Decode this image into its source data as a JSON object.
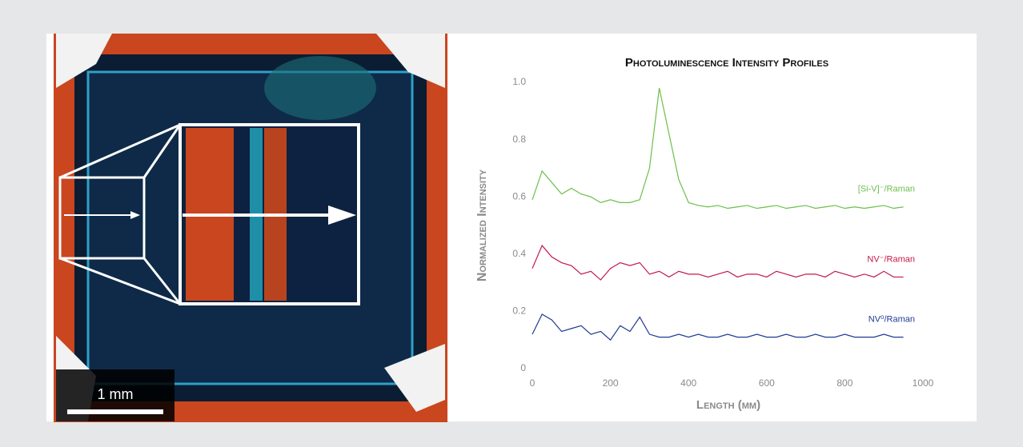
{
  "image": {
    "scale_bar": "1 mm"
  },
  "chart_data": {
    "type": "line",
    "title": "Photoluminescence Intensity Profiles",
    "x_label": "Length (µm)",
    "y_label": "Normalized Intensity",
    "x": [
      0,
      25,
      50,
      75,
      100,
      125,
      150,
      175,
      200,
      225,
      250,
      275,
      300,
      325,
      350,
      375,
      400,
      425,
      450,
      475,
      500,
      525,
      550,
      575,
      600,
      625,
      650,
      675,
      700,
      725,
      750,
      775,
      800,
      825,
      850,
      875,
      900,
      925,
      950
    ],
    "series": [
      {
        "name": "[Si-V]⁻/Raman",
        "color": "#6cbf4b",
        "values": [
          0.59,
          0.69,
          0.65,
          0.61,
          0.63,
          0.61,
          0.6,
          0.58,
          0.59,
          0.58,
          0.58,
          0.59,
          0.7,
          0.98,
          0.82,
          0.66,
          0.58,
          0.57,
          0.565,
          0.57,
          0.56,
          0.565,
          0.57,
          0.56,
          0.565,
          0.57,
          0.56,
          0.565,
          0.57,
          0.56,
          0.565,
          0.57,
          0.56,
          0.565,
          0.56,
          0.565,
          0.57,
          0.56,
          0.565
        ]
      },
      {
        "name": "NV⁻/Raman",
        "color": "#c4184a",
        "values": [
          0.35,
          0.43,
          0.39,
          0.37,
          0.36,
          0.33,
          0.34,
          0.31,
          0.35,
          0.37,
          0.36,
          0.37,
          0.33,
          0.34,
          0.32,
          0.34,
          0.33,
          0.33,
          0.32,
          0.33,
          0.34,
          0.32,
          0.33,
          0.33,
          0.32,
          0.34,
          0.33,
          0.32,
          0.33,
          0.33,
          0.32,
          0.34,
          0.33,
          0.32,
          0.33,
          0.32,
          0.34,
          0.32,
          0.32
        ]
      },
      {
        "name": "NV⁰/Raman",
        "color": "#1f3a93",
        "values": [
          0.12,
          0.19,
          0.17,
          0.13,
          0.14,
          0.15,
          0.12,
          0.13,
          0.1,
          0.15,
          0.13,
          0.18,
          0.12,
          0.11,
          0.11,
          0.12,
          0.11,
          0.12,
          0.11,
          0.11,
          0.12,
          0.11,
          0.11,
          0.12,
          0.11,
          0.11,
          0.12,
          0.11,
          0.11,
          0.12,
          0.11,
          0.11,
          0.12,
          0.11,
          0.11,
          0.11,
          0.12,
          0.11,
          0.11
        ]
      }
    ],
    "xlim": [
      0,
      1000
    ],
    "xticks": [
      0,
      200,
      400,
      600,
      800,
      1000
    ],
    "ylim": [
      0,
      1
    ],
    "yticks": [
      0,
      0.2,
      0.4,
      0.6,
      0.8,
      {
        "value": 1,
        "label": "1.0"
      }
    ],
    "grid": false
  }
}
